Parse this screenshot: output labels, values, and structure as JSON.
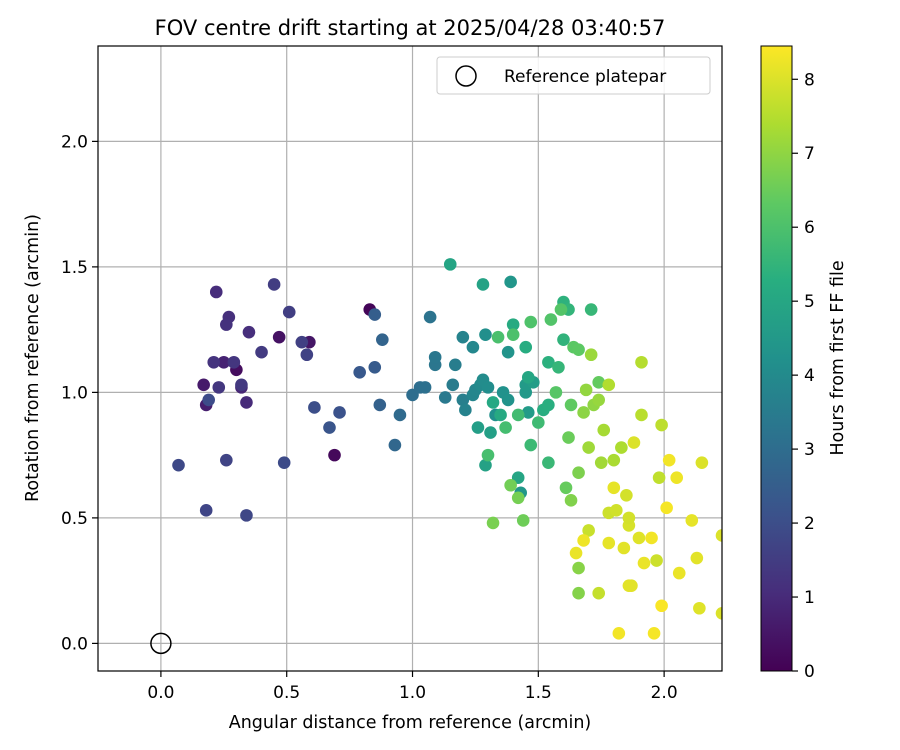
{
  "chart_data": {
    "type": "scatter",
    "title": "FOV centre drift starting at 2025/04/28 03:40:57",
    "xlabel": "Angular distance from reference (arcmin)",
    "ylabel": "Rotation from reference (arcmin)",
    "xlim": [
      -0.25,
      2.23
    ],
    "ylim": [
      -0.11,
      2.38
    ],
    "xticks": [
      0.0,
      0.5,
      1.0,
      1.5,
      2.0
    ],
    "xtick_labels": [
      "0.0",
      "0.5",
      "1.0",
      "1.5",
      "2.0"
    ],
    "yticks": [
      0.0,
      0.5,
      1.0,
      1.5,
      2.0
    ],
    "ytick_labels": [
      "0.0",
      "0.5",
      "1.0",
      "1.5",
      "2.0"
    ],
    "grid": true,
    "legend": {
      "placement": "top-right",
      "entries": [
        "Reference platepar"
      ]
    },
    "reference_point": {
      "name": "Reference platepar",
      "x": 0.0,
      "y": 0.0
    },
    "colorbar": {
      "label": "Hours from first FF file",
      "colormap": "viridis",
      "range": [
        0,
        8.45
      ],
      "ticks": [
        0,
        1,
        2,
        3,
        4,
        5,
        6,
        7,
        8
      ],
      "tick_labels": [
        "0",
        "1",
        "2",
        "3",
        "4",
        "5",
        "6",
        "7",
        "8"
      ]
    },
    "series": [
      {
        "fields": [
          "x",
          "y",
          "hours"
        ],
        "points": [
          [
            0.83,
            1.33,
            0.1
          ],
          [
            0.69,
            0.75,
            0.2
          ],
          [
            0.3,
            1.09,
            0.3
          ],
          [
            0.47,
            1.22,
            0.4
          ],
          [
            0.59,
            1.2,
            0.5
          ],
          [
            0.17,
            1.03,
            0.6
          ],
          [
            0.18,
            0.95,
            0.7
          ],
          [
            0.25,
            1.12,
            0.8
          ],
          [
            0.32,
            1.02,
            0.9
          ],
          [
            0.34,
            0.96,
            1.0
          ],
          [
            0.22,
            1.4,
            1.05
          ],
          [
            0.35,
            1.24,
            1.1
          ],
          [
            0.27,
            1.3,
            1.15
          ],
          [
            0.26,
            1.27,
            1.2
          ],
          [
            0.21,
            1.12,
            1.25
          ],
          [
            0.29,
            1.12,
            1.3
          ],
          [
            0.23,
            1.02,
            1.35
          ],
          [
            0.32,
            1.03,
            1.4
          ],
          [
            0.4,
            1.16,
            1.45
          ],
          [
            0.45,
            1.43,
            1.5
          ],
          [
            0.51,
            1.32,
            1.55
          ],
          [
            0.56,
            1.2,
            1.6
          ],
          [
            0.58,
            1.15,
            1.65
          ],
          [
            0.26,
            0.73,
            1.7
          ],
          [
            0.18,
            0.53,
            1.75
          ],
          [
            0.34,
            0.51,
            1.8
          ],
          [
            0.07,
            0.71,
            1.85
          ],
          [
            0.49,
            0.72,
            1.9
          ],
          [
            0.19,
            0.97,
            1.95
          ],
          [
            0.61,
            0.94,
            2.0
          ],
          [
            0.71,
            0.92,
            2.1
          ],
          [
            0.67,
            0.86,
            2.2
          ],
          [
            0.79,
            1.08,
            2.3
          ],
          [
            0.85,
            1.1,
            2.4
          ],
          [
            0.85,
            1.31,
            2.5
          ],
          [
            0.87,
            0.95,
            2.6
          ],
          [
            0.88,
            1.21,
            2.7
          ],
          [
            0.93,
            0.79,
            2.8
          ],
          [
            0.95,
            0.91,
            2.9
          ],
          [
            1.0,
            0.99,
            3.0
          ],
          [
            1.03,
            1.02,
            3.05
          ],
          [
            1.05,
            1.02,
            3.1
          ],
          [
            1.07,
            1.3,
            3.2
          ],
          [
            1.09,
            1.11,
            3.3
          ],
          [
            1.09,
            1.14,
            3.35
          ],
          [
            1.13,
            0.98,
            3.4
          ],
          [
            1.16,
            1.03,
            3.5
          ],
          [
            1.17,
            1.11,
            3.55
          ],
          [
            1.2,
            0.97,
            3.6
          ],
          [
            1.21,
            0.93,
            3.7
          ],
          [
            1.2,
            1.22,
            3.75
          ],
          [
            1.24,
            0.99,
            3.8
          ],
          [
            1.25,
            1.01,
            3.85
          ],
          [
            1.24,
            1.18,
            3.9
          ],
          [
            1.27,
            1.03,
            4.0
          ],
          [
            1.28,
            1.05,
            4.05
          ],
          [
            1.3,
            1.02,
            4.1
          ],
          [
            1.29,
            1.23,
            4.15
          ],
          [
            1.33,
            0.91,
            4.2
          ],
          [
            1.36,
            1.0,
            4.25
          ],
          [
            1.38,
            0.97,
            4.3
          ],
          [
            1.38,
            1.16,
            4.35
          ],
          [
            1.39,
            1.44,
            4.4
          ],
          [
            1.43,
            0.6,
            4.45
          ],
          [
            1.45,
            1.0,
            4.5
          ],
          [
            1.45,
            1.03,
            4.55
          ],
          [
            1.46,
            0.92,
            4.6
          ],
          [
            1.48,
            1.04,
            4.65
          ],
          [
            1.26,
            0.86,
            4.7
          ],
          [
            1.31,
            0.84,
            4.75
          ],
          [
            1.29,
            0.71,
            4.8
          ],
          [
            1.28,
            1.43,
            4.85
          ],
          [
            1.15,
            1.51,
            4.9
          ],
          [
            1.42,
            0.66,
            4.95
          ],
          [
            1.46,
            1.06,
            5.0
          ],
          [
            1.32,
            0.96,
            5.05
          ],
          [
            1.35,
            0.91,
            5.1
          ],
          [
            1.4,
            1.27,
            5.15
          ],
          [
            1.45,
            1.18,
            5.2
          ],
          [
            1.52,
            0.93,
            5.25
          ],
          [
            1.54,
            0.95,
            5.3
          ],
          [
            1.54,
            1.12,
            5.35
          ],
          [
            1.6,
            1.36,
            5.4
          ],
          [
            1.6,
            1.21,
            5.45
          ],
          [
            1.62,
            1.33,
            5.5
          ],
          [
            1.58,
            1.1,
            5.55
          ],
          [
            1.71,
            1.33,
            5.6
          ],
          [
            1.54,
            0.72,
            5.65
          ],
          [
            1.47,
            0.79,
            5.7
          ],
          [
            1.5,
            0.88,
            5.75
          ],
          [
            1.42,
            0.91,
            5.8
          ],
          [
            1.37,
            0.86,
            5.85
          ],
          [
            1.3,
            0.75,
            5.9
          ],
          [
            1.34,
            1.22,
            5.95
          ],
          [
            1.4,
            1.23,
            6.0
          ],
          [
            1.47,
            1.28,
            6.05
          ],
          [
            1.55,
            1.29,
            6.1
          ],
          [
            1.59,
            1.33,
            6.15
          ],
          [
            1.57,
            1.0,
            6.2
          ],
          [
            1.64,
            1.18,
            6.25
          ],
          [
            1.66,
            1.17,
            6.3
          ],
          [
            1.63,
            0.95,
            6.35
          ],
          [
            1.74,
            1.04,
            6.4
          ],
          [
            1.61,
            0.62,
            6.45
          ],
          [
            1.62,
            0.82,
            6.5
          ],
          [
            1.44,
            0.49,
            6.55
          ],
          [
            1.39,
            0.63,
            6.6
          ],
          [
            1.42,
            0.58,
            6.65
          ],
          [
            1.32,
            0.48,
            6.7
          ],
          [
            1.66,
            0.68,
            6.75
          ],
          [
            1.63,
            0.57,
            6.8
          ],
          [
            1.66,
            0.2,
            6.85
          ],
          [
            1.66,
            0.3,
            6.9
          ],
          [
            1.68,
            0.92,
            6.95
          ],
          [
            1.72,
            0.95,
            7.0
          ],
          [
            1.69,
            1.01,
            7.05
          ],
          [
            1.74,
            0.97,
            7.1
          ],
          [
            1.71,
            1.15,
            7.15
          ],
          [
            1.7,
            0.78,
            7.2
          ],
          [
            1.75,
            0.72,
            7.25
          ],
          [
            1.76,
            0.85,
            7.3
          ],
          [
            1.8,
            0.73,
            7.35
          ],
          [
            1.83,
            0.78,
            7.4
          ],
          [
            1.78,
            1.03,
            7.45
          ],
          [
            1.91,
            1.12,
            7.5
          ],
          [
            1.91,
            0.91,
            7.55
          ],
          [
            1.99,
            0.87,
            7.6
          ],
          [
            1.98,
            0.66,
            7.65
          ],
          [
            1.74,
            0.2,
            7.7
          ],
          [
            1.7,
            0.45,
            7.75
          ],
          [
            1.78,
            0.52,
            7.8
          ],
          [
            1.81,
            0.53,
            7.85
          ],
          [
            1.85,
            0.59,
            7.9
          ],
          [
            1.86,
            0.47,
            7.95
          ],
          [
            1.88,
            0.8,
            8.0
          ],
          [
            1.9,
            0.42,
            8.05
          ],
          [
            1.84,
            0.38,
            8.1
          ],
          [
            1.78,
            0.4,
            8.15
          ],
          [
            1.65,
            0.36,
            8.2
          ],
          [
            1.68,
            0.41,
            8.25
          ],
          [
            1.82,
            0.04,
            8.3
          ],
          [
            1.96,
            0.04,
            8.35
          ],
          [
            1.99,
            0.15,
            8.4
          ],
          [
            2.01,
            0.54,
            8.35
          ],
          [
            2.02,
            0.73,
            8.3
          ],
          [
            2.05,
            0.66,
            8.25
          ],
          [
            2.06,
            0.28,
            8.2
          ],
          [
            2.11,
            0.49,
            8.15
          ],
          [
            2.13,
            0.34,
            8.1
          ],
          [
            2.14,
            0.14,
            8.05
          ],
          [
            2.15,
            0.72,
            8.0
          ],
          [
            2.23,
            0.43,
            8.0
          ],
          [
            2.23,
            0.12,
            8.0
          ],
          [
            1.86,
            0.23,
            8.1
          ],
          [
            1.92,
            0.32,
            8.2
          ],
          [
            1.95,
            0.42,
            8.3
          ],
          [
            1.8,
            0.62,
            8.15
          ],
          [
            1.87,
            0.23,
            8.1
          ],
          [
            1.97,
            0.33,
            7.8
          ],
          [
            1.86,
            0.5,
            7.9
          ]
        ]
      }
    ]
  }
}
